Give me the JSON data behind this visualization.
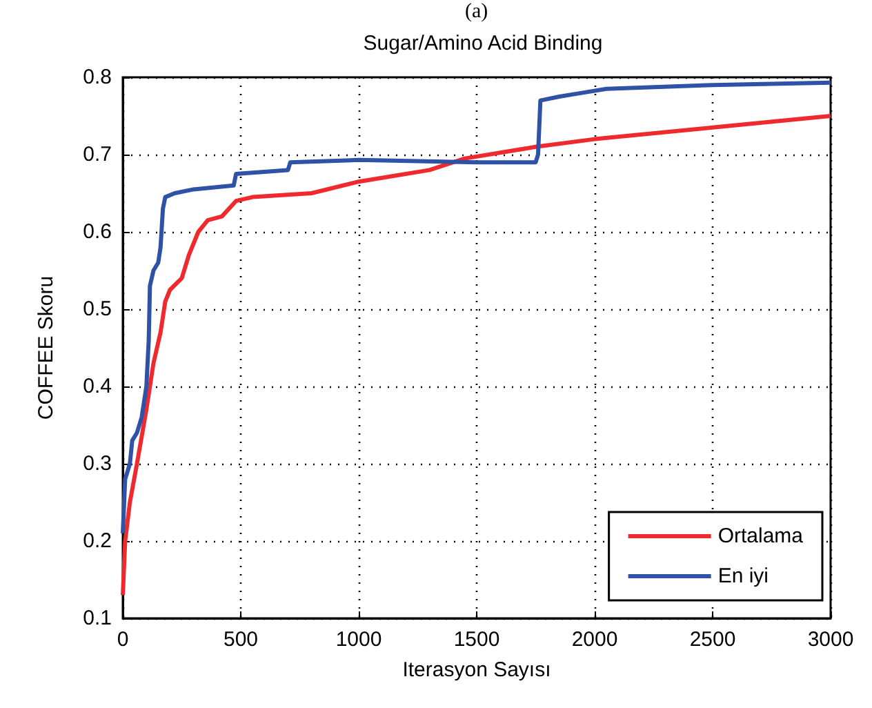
{
  "chart_data": {
    "type": "line",
    "title": "Sugar/Amino Acid Binding",
    "annotations": [
      "(a)"
    ],
    "xlabel": "Iterasyon Sayısı",
    "ylabel": "COFFEE Skoru",
    "xlim": [
      0,
      3000
    ],
    "xticks": [
      0,
      500,
      1000,
      1500,
      2000,
      2500,
      3000
    ],
    "ylim": [
      0.1,
      0.8
    ],
    "yticks": [
      0.1,
      0.2,
      0.3,
      0.4,
      0.5,
      0.6,
      0.7,
      0.8
    ],
    "grid": true,
    "legend": "bottom right",
    "line_style": "solid",
    "marker": "none",
    "series": [
      {
        "name": "Ortalama",
        "color": "#ee2a2e",
        "x": [
          0,
          10,
          30,
          60,
          100,
          130,
          160,
          180,
          200,
          250,
          280,
          320,
          360,
          420,
          480,
          550,
          800,
          1000,
          1300,
          1450,
          1750,
          2000,
          2500,
          3000
        ],
        "values": [
          0.13,
          0.2,
          0.25,
          0.3,
          0.37,
          0.43,
          0.47,
          0.51,
          0.525,
          0.54,
          0.57,
          0.6,
          0.615,
          0.62,
          0.64,
          0.645,
          0.65,
          0.665,
          0.68,
          0.695,
          0.71,
          0.72,
          0.735,
          0.75
        ]
      },
      {
        "name": "En iyi",
        "color": "#2f52a6",
        "x": [
          0,
          10,
          30,
          40,
          60,
          80,
          100,
          110,
          115,
          130,
          150,
          160,
          170,
          180,
          220,
          300,
          470,
          480,
          700,
          710,
          1000,
          1500,
          1750,
          1760,
          1770,
          1850,
          1950,
          2050,
          2500,
          3000
        ],
        "values": [
          0.21,
          0.28,
          0.3,
          0.33,
          0.34,
          0.36,
          0.4,
          0.46,
          0.53,
          0.55,
          0.56,
          0.58,
          0.63,
          0.645,
          0.65,
          0.655,
          0.66,
          0.675,
          0.68,
          0.69,
          0.693,
          0.69,
          0.69,
          0.7,
          0.77,
          0.775,
          0.78,
          0.785,
          0.79,
          0.793
        ]
      }
    ]
  }
}
